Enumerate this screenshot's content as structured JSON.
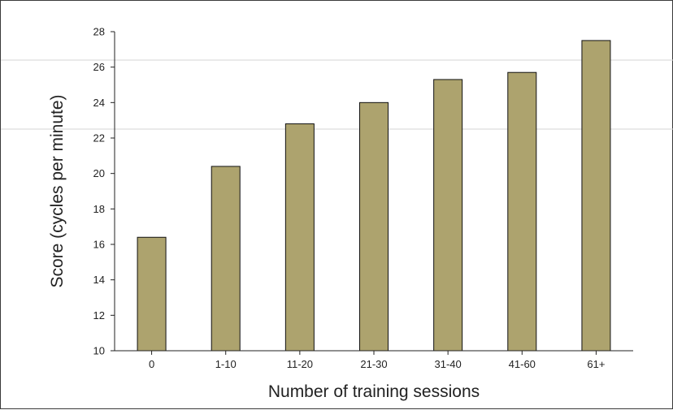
{
  "chart_data": {
    "type": "bar",
    "title": "",
    "xlabel": "Number of training sessions",
    "ylabel": "Score (cycles per minute)",
    "categories": [
      "0",
      "1-10",
      "11-20",
      "21-30",
      "31-40",
      "41-60",
      "61+"
    ],
    "values": [
      16.4,
      20.4,
      22.8,
      24.0,
      25.3,
      25.7,
      27.5
    ],
    "ylim": [
      10,
      28
    ],
    "yticks": [
      "10",
      "12",
      "14",
      "16",
      "18",
      "20",
      "22",
      "24",
      "26",
      "28"
    ],
    "grid": false,
    "legend": "none",
    "bar_color": "#ada36e",
    "bar_edge_color": "#111111"
  }
}
